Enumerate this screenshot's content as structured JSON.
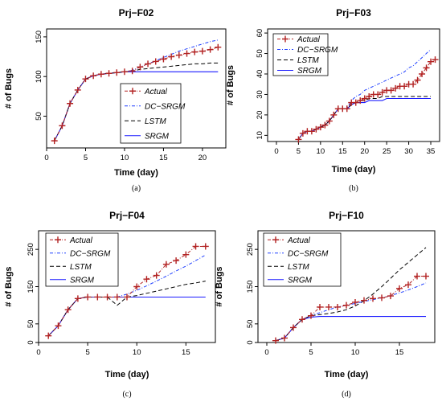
{
  "chart_data": [
    {
      "type": "line",
      "title": "Prj−F02",
      "caption": "(a)",
      "xlabel": "Time (day)",
      "ylabel": "# of Bugs",
      "xlim": [
        0,
        23
      ],
      "ylim": [
        10,
        160
      ],
      "xticks": [
        0,
        5,
        10,
        15,
        20
      ],
      "yticks": [
        50,
        100,
        150
      ],
      "legend_position": "bottom-right",
      "series": [
        {
          "name": "Actual",
          "style": "actual",
          "color": "#b22222",
          "x": [
            1,
            2,
            3,
            4,
            5,
            6,
            7,
            8,
            9,
            10,
            11,
            12,
            13,
            14,
            15,
            16,
            17,
            18,
            19,
            20,
            21,
            22
          ],
          "y": [
            19,
            38,
            66,
            83,
            97,
            101,
            103,
            104,
            105,
            106,
            107,
            112,
            116,
            119,
            122,
            125,
            127,
            129,
            131,
            132,
            134,
            137
          ]
        },
        {
          "name": "DC−SRGM",
          "style": "dashdot",
          "color": "#1f3fff",
          "x": [
            1,
            2,
            3,
            4,
            5,
            6,
            7,
            8,
            9,
            10,
            11,
            12,
            13,
            14,
            15,
            16,
            17,
            18,
            19,
            20,
            21,
            22
          ],
          "y": [
            19,
            38,
            66,
            83,
            97,
            101,
            103,
            104,
            105,
            106,
            108,
            112,
            116,
            120,
            124,
            128,
            132,
            135,
            138,
            141,
            144,
            146
          ]
        },
        {
          "name": "LSTM",
          "style": "dashed",
          "color": "#000000",
          "x": [
            1,
            2,
            3,
            4,
            5,
            6,
            7,
            8,
            9,
            10,
            11,
            12,
            13,
            14,
            15,
            16,
            17,
            18,
            19,
            20,
            21,
            22
          ],
          "y": [
            19,
            38,
            66,
            83,
            97,
            101,
            103,
            104,
            105,
            106,
            107,
            109,
            110,
            111,
            112,
            113,
            114,
            115,
            116,
            116,
            117,
            117
          ]
        },
        {
          "name": "SRGM",
          "style": "solid",
          "color": "#1a1aff",
          "x": [
            1,
            2,
            3,
            4,
            5,
            6,
            7,
            8,
            9,
            10,
            11,
            12,
            13,
            14,
            15,
            16,
            17,
            18,
            19,
            20,
            21,
            22
          ],
          "y": [
            19,
            38,
            66,
            83,
            97,
            101,
            103,
            104,
            105,
            106,
            106,
            106,
            106,
            106,
            106,
            106,
            106,
            106,
            106,
            106,
            106,
            106
          ]
        }
      ]
    },
    {
      "type": "line",
      "title": "Prj−F03",
      "caption": "(b)",
      "xlabel": "Time (day)",
      "ylabel": "# of Bugs",
      "xlim": [
        -2,
        37
      ],
      "ylim": [
        7,
        62
      ],
      "xticks": [
        0,
        5,
        10,
        15,
        20,
        25,
        30,
        35
      ],
      "yticks": [
        10,
        20,
        30,
        40,
        50,
        60
      ],
      "legend_position": "top-left",
      "series": [
        {
          "name": "Actual",
          "style": "actual",
          "color": "#b22222",
          "x": [
            5,
            6,
            7,
            8,
            9,
            10,
            11,
            12,
            13,
            14,
            15,
            16,
            17,
            18,
            19,
            20,
            21,
            22,
            23,
            24,
            25,
            26,
            27,
            28,
            29,
            30,
            31,
            32,
            33,
            34,
            35,
            36
          ],
          "y": [
            8,
            11,
            12,
            12,
            13,
            14,
            15,
            17,
            20,
            23,
            23,
            23,
            26,
            26,
            27,
            28,
            29,
            30,
            30,
            31,
            32,
            32,
            33,
            34,
            34,
            35,
            35,
            37,
            40,
            43,
            46,
            47
          ]
        },
        {
          "name": "DC−SRGM",
          "style": "dashdot",
          "color": "#1f3fff",
          "x": [
            5,
            6,
            7,
            8,
            9,
            10,
            11,
            12,
            13,
            14,
            15,
            16,
            17,
            18,
            19,
            20,
            21,
            22,
            23,
            24,
            25,
            26,
            27,
            28,
            29,
            30,
            31,
            32,
            33,
            34,
            35
          ],
          "y": [
            8,
            11,
            12,
            12,
            13,
            14,
            15,
            17,
            20,
            23,
            23,
            23,
            27,
            29,
            30,
            32,
            33,
            34,
            35,
            36,
            37,
            38,
            39,
            40,
            41,
            43,
            44,
            46,
            48,
            50,
            52
          ]
        },
        {
          "name": "LSTM",
          "style": "dashed",
          "color": "#000000",
          "x": [
            5,
            6,
            7,
            8,
            9,
            10,
            11,
            12,
            13,
            14,
            15,
            16,
            17,
            18,
            19,
            20,
            21,
            22,
            23,
            24,
            25,
            26,
            27,
            28,
            29,
            30,
            31,
            32,
            33,
            34,
            35
          ],
          "y": [
            8,
            11,
            12,
            12,
            13,
            14,
            15,
            17,
            20,
            23,
            23,
            23,
            25,
            26,
            27,
            27,
            28,
            28,
            28,
            29,
            29,
            29,
            29,
            29,
            29,
            29,
            29,
            29,
            29,
            29,
            29
          ]
        },
        {
          "name": "SRGM",
          "style": "solid",
          "color": "#1a1aff",
          "x": [
            5,
            6,
            7,
            8,
            9,
            10,
            11,
            12,
            13,
            14,
            15,
            16,
            17,
            18,
            19,
            20,
            21,
            22,
            23,
            24,
            25,
            26,
            27,
            28,
            29,
            30,
            31,
            32,
            33,
            34,
            35
          ],
          "y": [
            8,
            11,
            12,
            12,
            13,
            14,
            15,
            17,
            20,
            23,
            23,
            23,
            25,
            26,
            26,
            26,
            27,
            27,
            27,
            27,
            28,
            28,
            28,
            28,
            28,
            28,
            28,
            28,
            28,
            28,
            28
          ]
        }
      ]
    },
    {
      "type": "line",
      "title": "Prj−F04",
      "caption": "(c)",
      "xlabel": "Time (day)",
      "ylabel": "# of Bugs",
      "xlim": [
        0,
        18
      ],
      "ylim": [
        0,
        300
      ],
      "xticks": [
        0,
        5,
        10,
        15
      ],
      "yticks": [
        0,
        50,
        150,
        250
      ],
      "legend_position": "top-left",
      "series": [
        {
          "name": "Actual",
          "style": "actual",
          "color": "#b22222",
          "x": [
            1,
            2,
            3,
            4,
            5,
            6,
            7,
            8,
            9,
            10,
            11,
            12,
            13,
            14,
            15,
            16,
            17
          ],
          "y": [
            18,
            45,
            88,
            118,
            122,
            122,
            122,
            122,
            122,
            150,
            170,
            180,
            210,
            220,
            236,
            258,
            258
          ]
        },
        {
          "name": "DC−SRGM",
          "style": "dashdot",
          "color": "#1f3fff",
          "x": [
            1,
            2,
            3,
            4,
            5,
            6,
            7,
            8,
            9,
            10,
            11,
            12,
            13,
            14,
            15,
            16,
            17
          ],
          "y": [
            18,
            45,
            88,
            118,
            122,
            122,
            122,
            122,
            130,
            140,
            152,
            165,
            178,
            192,
            205,
            220,
            235
          ]
        },
        {
          "name": "LSTM",
          "style": "dashed",
          "color": "#000000",
          "x": [
            1,
            2,
            3,
            4,
            5,
            6,
            7,
            8,
            9,
            10,
            11,
            12,
            13,
            14,
            15,
            16,
            17
          ],
          "y": [
            18,
            45,
            88,
            118,
            122,
            122,
            122,
            100,
            122,
            126,
            132,
            138,
            144,
            150,
            156,
            160,
            165
          ]
        },
        {
          "name": "SRGM",
          "style": "solid",
          "color": "#1a1aff",
          "x": [
            1,
            2,
            3,
            4,
            5,
            6,
            7,
            8,
            9,
            10,
            11,
            12,
            13,
            14,
            15,
            16,
            17
          ],
          "y": [
            18,
            45,
            88,
            118,
            122,
            122,
            122,
            122,
            122,
            122,
            122,
            122,
            122,
            122,
            122,
            122,
            122
          ]
        }
      ]
    },
    {
      "type": "line",
      "title": "Prj−F10",
      "caption": "(d)",
      "xlabel": "Time (day)",
      "ylabel": "# of Bugs",
      "xlim": [
        -1,
        19
      ],
      "ylim": [
        0,
        300
      ],
      "xticks": [
        0,
        5,
        10,
        15
      ],
      "yticks": [
        0,
        50,
        150,
        250
      ],
      "legend_position": "top-left",
      "series": [
        {
          "name": "Actual",
          "style": "actual",
          "color": "#b22222",
          "x": [
            1,
            2,
            3,
            4,
            5,
            6,
            7,
            8,
            9,
            10,
            11,
            12,
            13,
            14,
            15,
            16,
            17,
            18
          ],
          "y": [
            5,
            12,
            40,
            62,
            72,
            95,
            95,
            95,
            100,
            108,
            113,
            118,
            120,
            125,
            145,
            155,
            178,
            178
          ]
        },
        {
          "name": "DC−SRGM",
          "style": "dashdot",
          "color": "#1f3fff",
          "x": [
            1,
            2,
            3,
            4,
            5,
            6,
            7,
            8,
            9,
            10,
            11,
            12,
            13,
            14,
            15,
            16,
            17,
            18
          ],
          "y": [
            5,
            12,
            40,
            62,
            72,
            80,
            88,
            95,
            100,
            105,
            110,
            115,
            120,
            126,
            133,
            141,
            150,
            160
          ]
        },
        {
          "name": "LSTM",
          "style": "dashed",
          "color": "#000000",
          "x": [
            1,
            2,
            3,
            4,
            5,
            6,
            7,
            8,
            9,
            10,
            11,
            12,
            13,
            14,
            15,
            16,
            17,
            18
          ],
          "y": [
            5,
            12,
            40,
            62,
            72,
            75,
            78,
            82,
            88,
            98,
            112,
            130,
            150,
            172,
            195,
            215,
            235,
            255
          ]
        },
        {
          "name": "SRGM",
          "style": "solid",
          "color": "#1a1aff",
          "x": [
            1,
            2,
            3,
            4,
            5,
            6,
            7,
            8,
            9,
            10,
            11,
            12,
            13,
            14,
            15,
            16,
            17,
            18
          ],
          "y": [
            5,
            12,
            40,
            62,
            68,
            70,
            70,
            70,
            70,
            70,
            70,
            70,
            70,
            70,
            70,
            70,
            70,
            70
          ]
        }
      ]
    }
  ]
}
